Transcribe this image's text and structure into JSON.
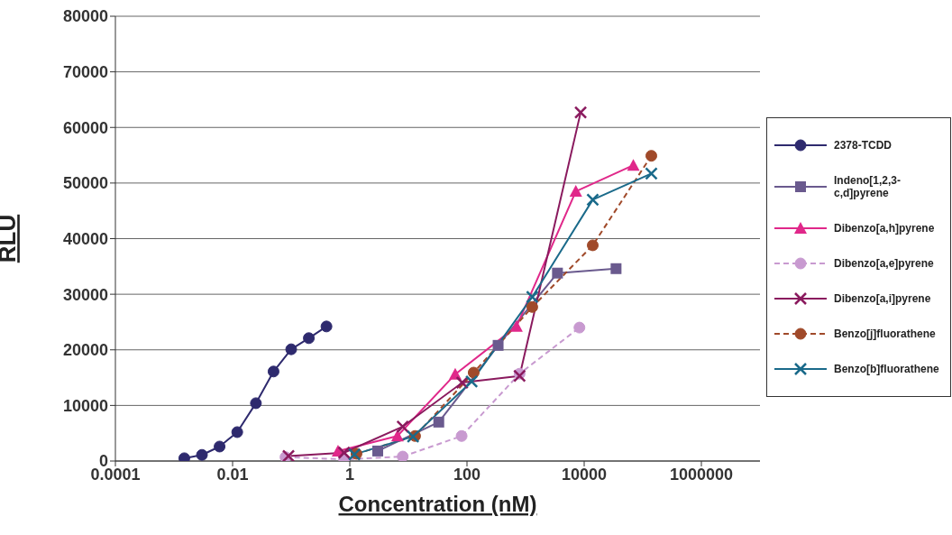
{
  "chart_data": {
    "type": "line",
    "xlabel": "Concentration (nM)",
    "ylabel": "RLU",
    "log": "x",
    "xlim": [
      0.0001,
      10000000
    ],
    "xticks": [
      0.0001,
      0.01,
      1,
      100,
      10000,
      1000000
    ],
    "ylim": [
      0,
      80000
    ],
    "yticks": [
      0,
      10000,
      20000,
      30000,
      40000,
      50000,
      60000,
      70000,
      80000
    ],
    "grid": "y",
    "legend": "right",
    "series": [
      {
        "name": "2378-TCDD",
        "color": "#2e2a6e",
        "marker": "circle",
        "line_style": "solid",
        "x": [
          0.0015,
          0.003,
          0.006,
          0.012,
          0.025,
          0.05,
          0.1,
          0.2,
          0.4
        ],
        "values": [
          500,
          1100,
          2600,
          5200,
          10400,
          16100,
          20100,
          22100,
          24200
        ]
      },
      {
        "name": "Indeno[1,2,3-c,d]pyrene",
        "color": "#6a5a8e",
        "marker": "square",
        "line_style": "solid",
        "x": [
          3,
          33,
          340,
          3500,
          35000
        ],
        "values": [
          1800,
          7000,
          20800,
          33800,
          34600
        ]
      },
      {
        "name": "Dibenzo[a,h]pyrene",
        "color": "#e0288a",
        "marker": "triangle",
        "line_style": "solid",
        "x": [
          0.63,
          6.5,
          63,
          700,
          7200,
          69000
        ],
        "values": [
          1800,
          4500,
          15600,
          24200,
          48500,
          53200
        ]
      },
      {
        "name": "Dibenzo[a,e]pyrene",
        "color": "#c89ad0",
        "marker": "circle",
        "line_style": "dashed",
        "x": [
          0.08,
          0.8,
          8,
          81,
          790,
          8300
        ],
        "values": [
          700,
          300,
          800,
          4500,
          15700,
          24000
        ]
      },
      {
        "name": "Dibenzo[a,i]pyrene",
        "color": "#8a1a5e",
        "marker": "cross",
        "line_style": "solid",
        "x": [
          0.09,
          0.8,
          8,
          83,
          790,
          8700
        ],
        "values": [
          900,
          1500,
          6200,
          14100,
          15300,
          62700
        ]
      },
      {
        "name": "Benzo[j]fluorathene",
        "color": "#a04a2a",
        "marker": "circle",
        "line_style": "dashed",
        "x": [
          1.3,
          13,
          130,
          1300,
          14000,
          140000
        ],
        "values": [
          1300,
          4500,
          15900,
          27700,
          38800,
          54900
        ]
      },
      {
        "name": "Benzo[b]fluorathene",
        "color": "#1a6a8a",
        "marker": "cross",
        "line_style": "solid",
        "x": [
          1.2,
          12,
          120,
          1300,
          14000,
          140000
        ],
        "values": [
          1200,
          4400,
          14300,
          29500,
          47000,
          51700
        ]
      }
    ]
  }
}
